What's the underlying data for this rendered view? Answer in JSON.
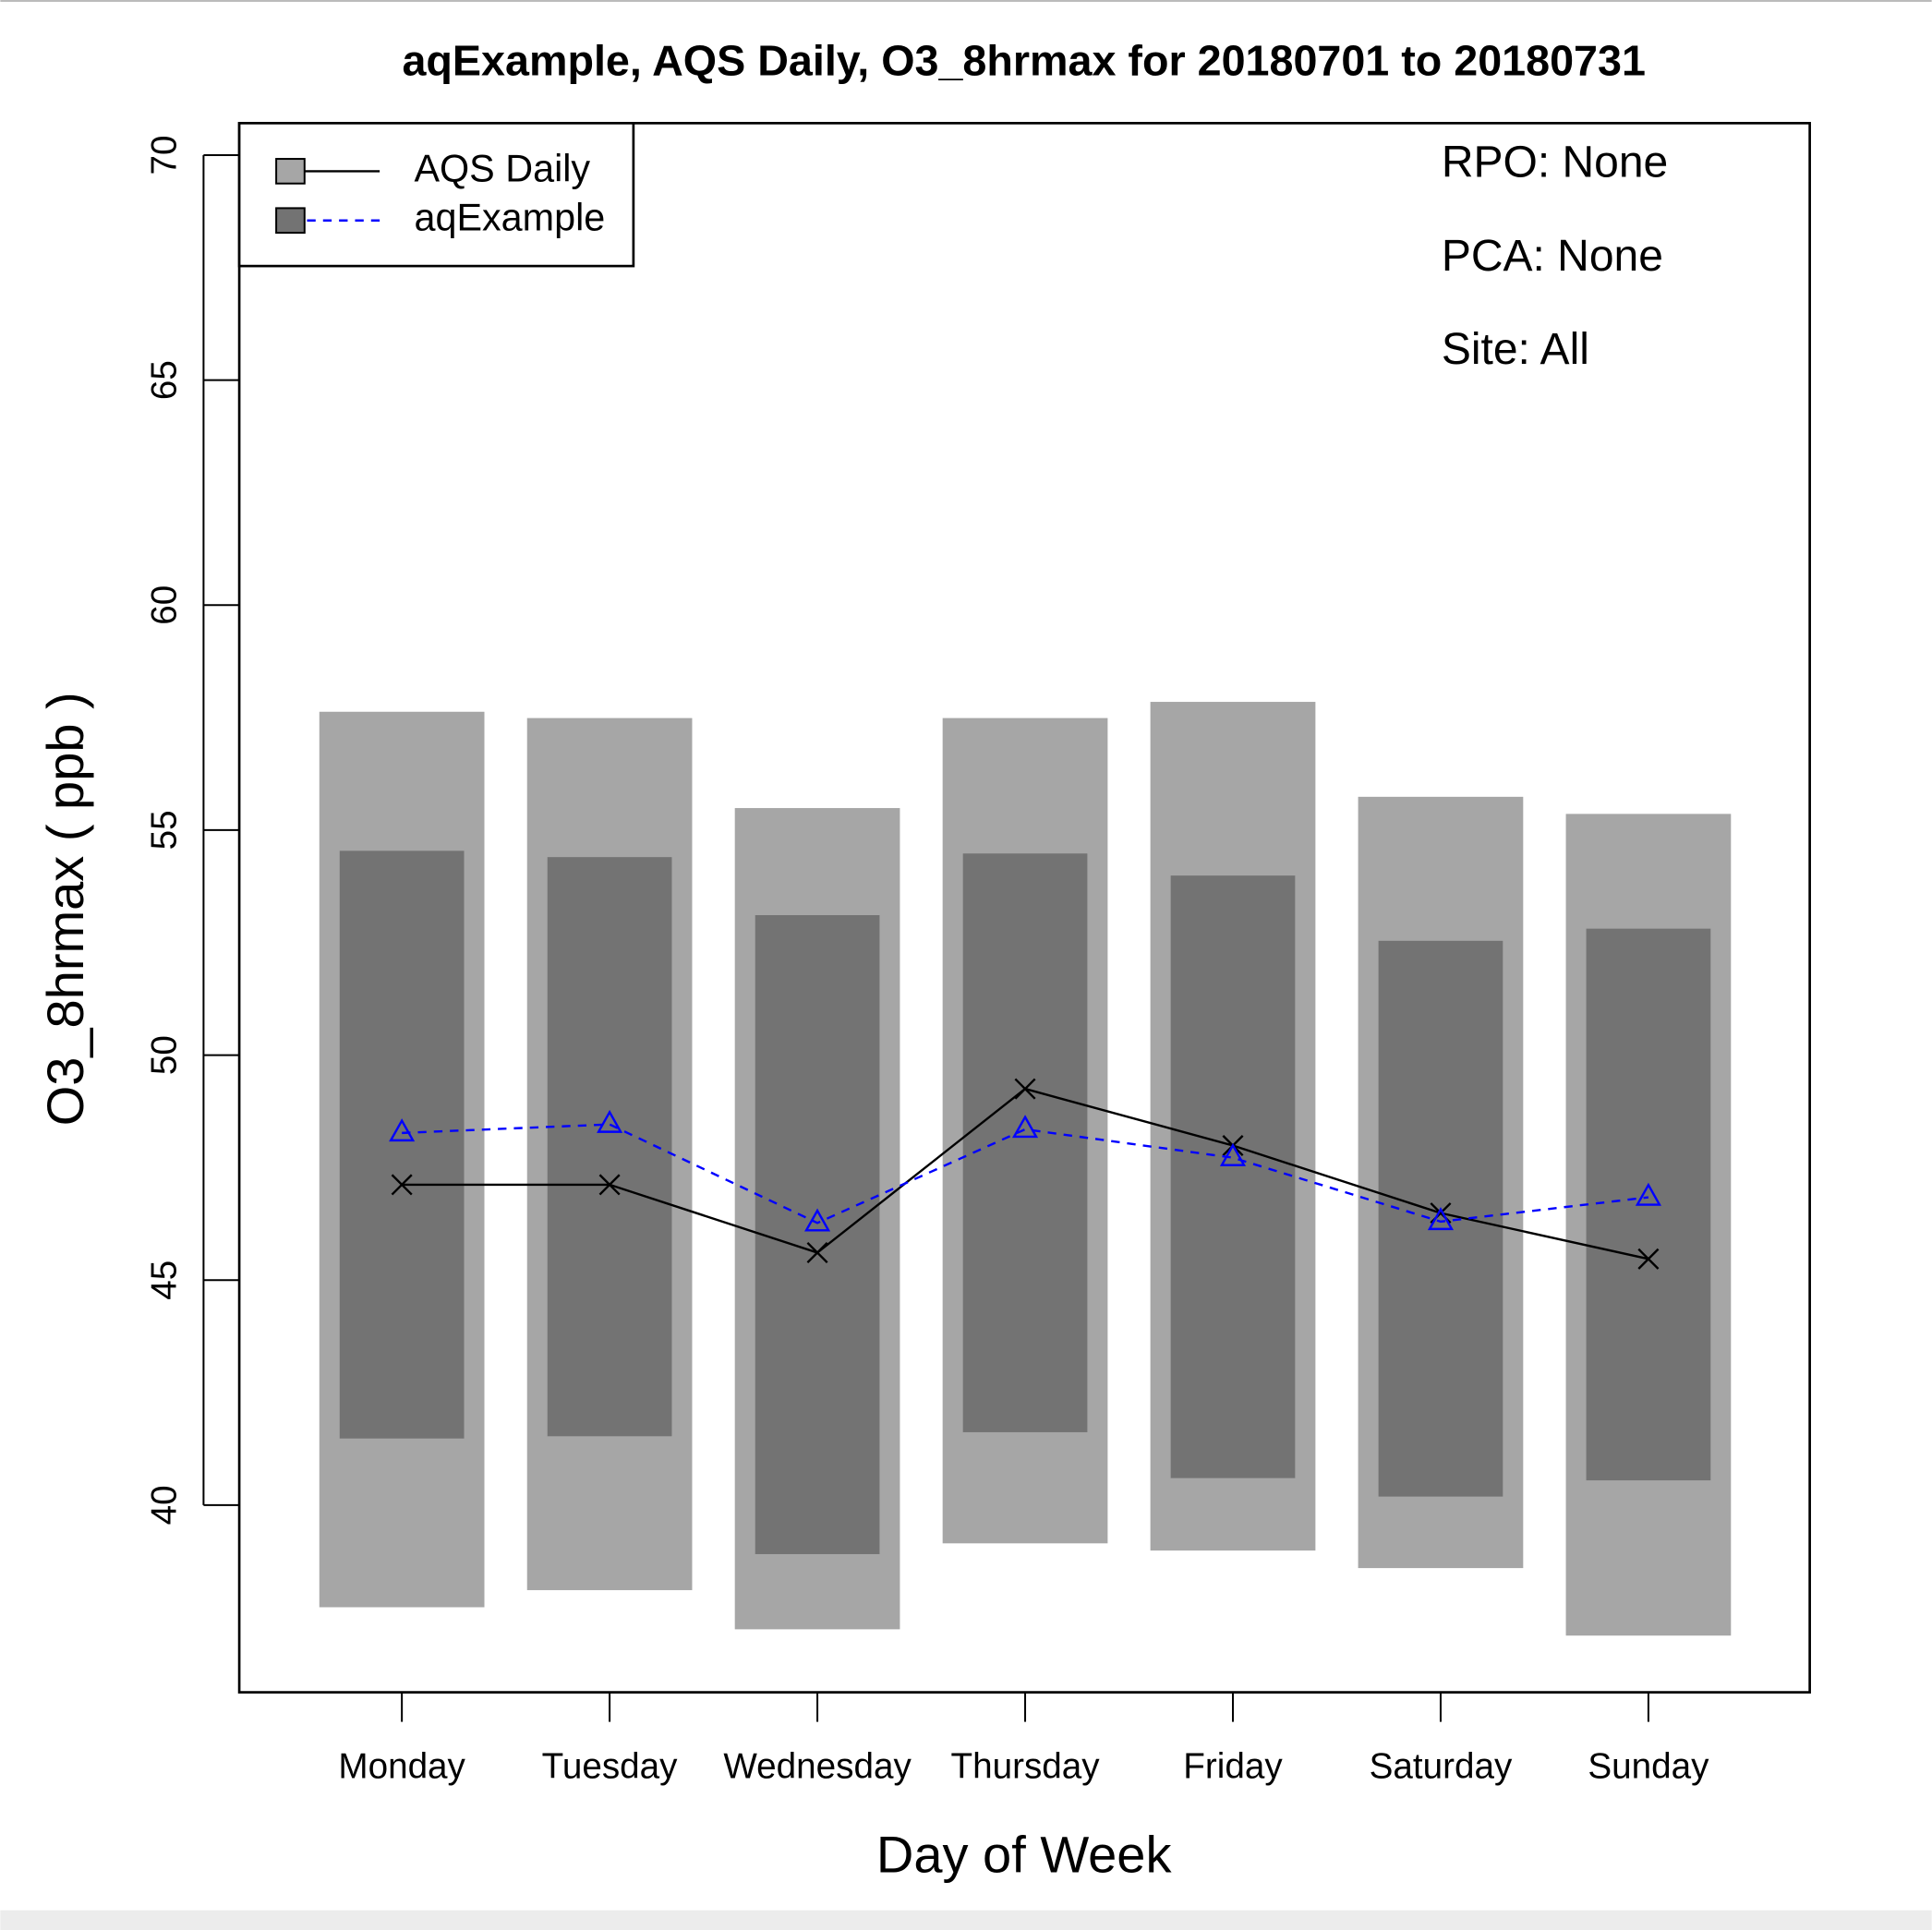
{
  "chart_data": {
    "type": "band",
    "title": "aqExample, AQS Daily, O3_8hrmax for 20180701 to 20180731",
    "x_label": "Day of Week",
    "y_label": "O3_8hrmax ( ppb )",
    "annotations": [
      "RPO: None",
      "PCA: None",
      "Site: All"
    ],
    "categories": [
      "Monday",
      "Tuesday",
      "Wednesday",
      "Thursday",
      "Friday",
      "Saturday",
      "Sunday"
    ],
    "series": [
      {
        "name": "AQS Daily",
        "color": "#000000",
        "marker": "x",
        "dash": false,
        "values": [
          47.12,
          47.12,
          45.61,
          49.25,
          47.99,
          46.49,
          45.47
        ],
        "range_color": "#a6a6a6",
        "range_low": [
          37.73,
          38.11,
          37.24,
          39.15,
          38.99,
          38.6,
          37.1
        ],
        "range_high": [
          57.63,
          57.49,
          55.49,
          57.49,
          57.85,
          55.74,
          55.36
        ]
      },
      {
        "name": "aqExample",
        "color": "#0000ff",
        "marker": "triangle",
        "dash": true,
        "values": [
          48.27,
          48.46,
          46.27,
          48.35,
          47.72,
          46.3,
          46.84
        ],
        "range_color": "#737373",
        "range_low": [
          41.48,
          41.53,
          38.91,
          41.62,
          40.6,
          40.19,
          40.55
        ],
        "range_high": [
          54.54,
          54.4,
          53.11,
          54.48,
          53.99,
          52.54,
          52.81
        ]
      }
    ],
    "ylim": [
      35.84,
      70.71
    ],
    "yticks": [
      40,
      45,
      50,
      55,
      60,
      65,
      70
    ],
    "legend": "top-left"
  }
}
